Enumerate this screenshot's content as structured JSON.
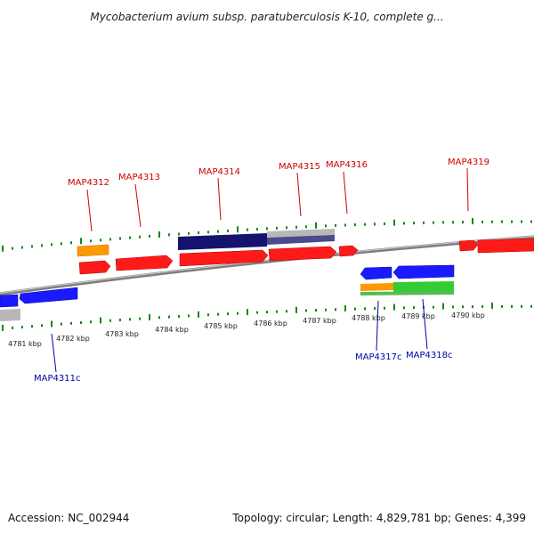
{
  "title": "Mycobacterium avium subsp. paratuberculosis K-10, complete g...",
  "footer": {
    "accession": "Accession: NC_002944",
    "summary": "Topology: circular; Length: 4,829,781 bp; Genes: 4,399"
  },
  "colors": {
    "forward_gene": "#ff0000",
    "reverse_gene": "#1a1aff",
    "forward_label": "#cc0000",
    "reverse_label": "#0000aa",
    "rna_orange": "#ff9900",
    "navy": "#14146e",
    "gray_feature": "#b0b0b0",
    "green_feature": "#33cc33",
    "tick": "#118811",
    "backbone": "#8a8a8a"
  },
  "scale_labels": [
    "4781 kbp",
    "4782 kbp",
    "4783 kbp",
    "4784 kbp",
    "4785 kbp",
    "4786 kbp",
    "4787 kbp",
    "4788 kbp",
    "4789 kbp",
    "4790 kbp"
  ],
  "forward_gene_labels": [
    "MAP4312",
    "MAP4313",
    "MAP4314",
    "MAP4315",
    "MAP4316",
    "MAP4319"
  ],
  "reverse_gene_labels": [
    "MAP4311c",
    "MAP4317c",
    "MAP4318c"
  ]
}
